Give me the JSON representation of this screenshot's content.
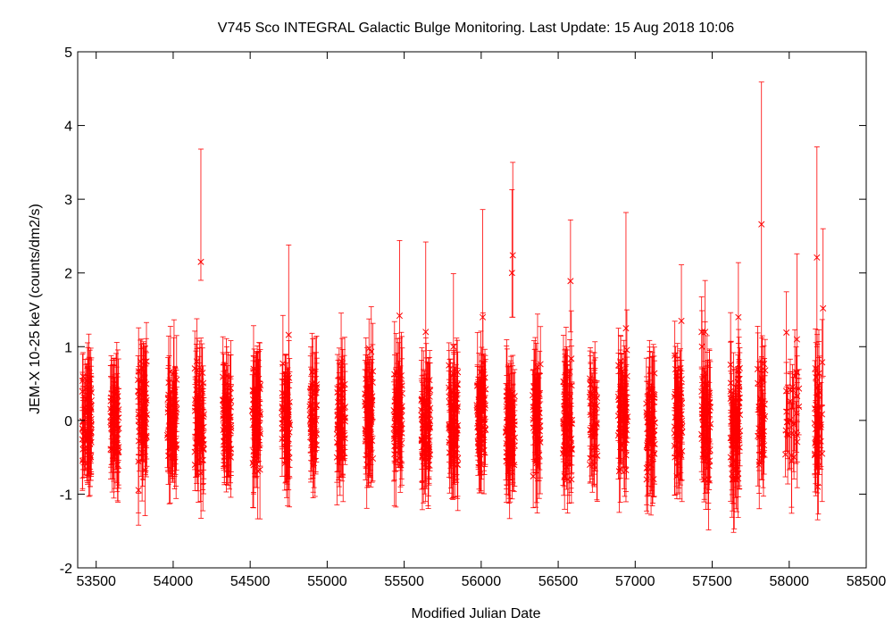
{
  "chart_data": {
    "type": "scatter",
    "title": "V745 Sco   INTEGRAL Galactic Bulge Monitoring.  Last Update: 15 Aug 2018 10:06",
    "xlabel": "Modified Julian Date",
    "ylabel": "JEM-X 10-25 keV (counts/dm2/s)",
    "xlim": [
      53380,
      58500
    ],
    "ylim": [
      -2,
      5
    ],
    "xticks": [
      53500,
      54000,
      54500,
      55000,
      55500,
      56000,
      56500,
      57000,
      57500,
      58000,
      58500
    ],
    "yticks": [
      -2,
      -1,
      0,
      1,
      2,
      3,
      4,
      5
    ],
    "grid": false,
    "legend": "none",
    "marker": "x",
    "error_bars": true,
    "series_color": "#ff0000",
    "observation_seasons": [
      {
        "x_center": 53440,
        "x_span": 60,
        "scatter_sd": 0.28,
        "n": 70,
        "y_min": -0.8,
        "y_max": 0.6
      },
      {
        "x_center": 53620,
        "x_span": 55,
        "scatter_sd": 0.28,
        "n": 55,
        "y_min": -0.6,
        "y_max": 0.7
      },
      {
        "x_center": 53800,
        "x_span": 60,
        "scatter_sd": 0.35,
        "n": 60,
        "y_min": -1.0,
        "y_max": 0.8
      },
      {
        "x_center": 53990,
        "x_span": 65,
        "scatter_sd": 0.3,
        "n": 60,
        "y_min": -0.5,
        "y_max": 0.95
      },
      {
        "x_center": 54170,
        "x_span": 60,
        "scatter_sd": 0.35,
        "n": 60,
        "y_min": -0.9,
        "y_max": 0.8
      },
      {
        "x_center": 54350,
        "x_span": 55,
        "scatter_sd": 0.3,
        "n": 55,
        "y_min": -0.5,
        "y_max": 1.0
      },
      {
        "x_center": 54540,
        "x_span": 55,
        "scatter_sd": 0.32,
        "n": 55,
        "y_min": -0.8,
        "y_max": 0.7
      },
      {
        "x_center": 54730,
        "x_span": 55,
        "scatter_sd": 0.32,
        "n": 55,
        "y_min": -0.6,
        "y_max": 1.15
      },
      {
        "x_center": 54910,
        "x_span": 50,
        "scatter_sd": 0.32,
        "n": 50,
        "y_min": -0.7,
        "y_max": 1.1
      },
      {
        "x_center": 55090,
        "x_span": 55,
        "scatter_sd": 0.32,
        "n": 55,
        "y_min": -0.5,
        "y_max": 1.1
      },
      {
        "x_center": 55270,
        "x_span": 55,
        "scatter_sd": 0.35,
        "n": 60,
        "y_min": -0.6,
        "y_max": 1.25
      },
      {
        "x_center": 55460,
        "x_span": 55,
        "scatter_sd": 0.32,
        "n": 60,
        "y_min": -0.6,
        "y_max": 1.4
      },
      {
        "x_center": 55640,
        "x_span": 60,
        "scatter_sd": 0.35,
        "n": 65,
        "y_min": -0.8,
        "y_max": 1.0
      },
      {
        "x_center": 55820,
        "x_span": 60,
        "scatter_sd": 0.35,
        "n": 65,
        "y_min": -0.6,
        "y_max": 1.2
      },
      {
        "x_center": 56000,
        "x_span": 60,
        "scatter_sd": 0.38,
        "n": 65,
        "y_min": -0.6,
        "y_max": 1.4
      },
      {
        "x_center": 56190,
        "x_span": 60,
        "scatter_sd": 0.38,
        "n": 60,
        "y_min": -0.7,
        "y_max": 2.2
      },
      {
        "x_center": 56360,
        "x_span": 50,
        "scatter_sd": 0.32,
        "n": 45,
        "y_min": -0.8,
        "y_max": 0.8
      },
      {
        "x_center": 56560,
        "x_span": 60,
        "scatter_sd": 0.38,
        "n": 60,
        "y_min": -0.8,
        "y_max": 1.9
      },
      {
        "x_center": 56730,
        "x_span": 50,
        "scatter_sd": 0.3,
        "n": 40,
        "y_min": -0.6,
        "y_max": 0.75
      },
      {
        "x_center": 56920,
        "x_span": 60,
        "scatter_sd": 0.4,
        "n": 60,
        "y_min": -0.9,
        "y_max": 1.2
      },
      {
        "x_center": 57100,
        "x_span": 55,
        "scatter_sd": 0.38,
        "n": 55,
        "y_min": -0.8,
        "y_max": 0.9
      },
      {
        "x_center": 57280,
        "x_span": 55,
        "scatter_sd": 0.38,
        "n": 55,
        "y_min": -0.8,
        "y_max": 1.35
      },
      {
        "x_center": 57460,
        "x_span": 60,
        "scatter_sd": 0.4,
        "n": 60,
        "y_min": -0.8,
        "y_max": 1.2
      },
      {
        "x_center": 57650,
        "x_span": 65,
        "scatter_sd": 0.42,
        "n": 70,
        "y_min": -0.8,
        "y_max": 1.4
      },
      {
        "x_center": 57820,
        "x_span": 50,
        "scatter_sd": 0.35,
        "n": 40,
        "y_min": -0.6,
        "y_max": 1.2
      },
      {
        "x_center": 58020,
        "x_span": 90,
        "scatter_sd": 0.35,
        "n": 30,
        "y_min": -0.6,
        "y_max": 1.37
      },
      {
        "x_center": 58190,
        "x_span": 50,
        "scatter_sd": 0.4,
        "n": 40,
        "y_min": -0.9,
        "y_max": 1.5
      }
    ],
    "notable_points": [
      {
        "x": 54180,
        "y": 2.15,
        "yerr_low": 1.9,
        "yerr_high": 3.68
      },
      {
        "x": 56205,
        "y": 2.24,
        "yerr_low": 1.4,
        "yerr_high": 3.5
      },
      {
        "x": 56200,
        "y": 2.0,
        "yerr_low": 1.4,
        "yerr_high": 3.13
      },
      {
        "x": 56580,
        "y": 1.89,
        "yerr_low": 1.2,
        "yerr_high": 2.72
      },
      {
        "x": 57820,
        "y": 2.66,
        "yerr_low": 0.8,
        "yerr_high": 4.59
      },
      {
        "x": 58180,
        "y": 2.21,
        "yerr_low": 1.0,
        "yerr_high": 3.71
      },
      {
        "x": 58220,
        "y": 1.52,
        "yerr_low": 0.6,
        "yerr_high": 2.6
      },
      {
        "x": 56940,
        "y": 1.25,
        "yerr_low": 0.2,
        "yerr_high": 2.82
      },
      {
        "x": 56010,
        "y": 1.4,
        "yerr_low": 0.3,
        "yerr_high": 2.86
      },
      {
        "x": 55470,
        "y": 1.42,
        "yerr_low": 0.4,
        "yerr_high": 2.44
      },
      {
        "x": 55640,
        "y": 1.2,
        "yerr_low": 0.2,
        "yerr_high": 2.42
      },
      {
        "x": 54750,
        "y": 1.16,
        "yerr_low": 0.1,
        "yerr_high": 2.38
      },
      {
        "x": 57300,
        "y": 1.35,
        "yerr_low": 0.5,
        "yerr_high": 2.11
      },
      {
        "x": 57670,
        "y": 1.4,
        "yerr_low": 0.6,
        "yerr_high": 2.14
      },
      {
        "x": 58050,
        "y": 1.1,
        "yerr_low": 0.0,
        "yerr_high": 2.26
      },
      {
        "x": 55820,
        "y": 1.0,
        "yerr_low": 0.0,
        "yerr_high": 1.99
      }
    ]
  }
}
